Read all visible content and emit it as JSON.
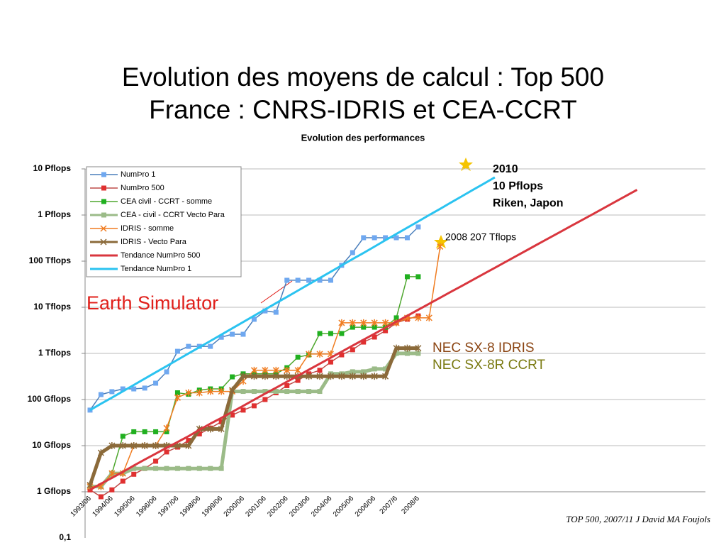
{
  "slide_title": [
    "Evolution des moyens de calcul : Top 500",
    "France : CNRS-IDRIS et CEA-CCRT"
  ],
  "source": "TOP 500, 2007/11 J David MA Foujols",
  "chart_data": {
    "type": "line",
    "title": "Evolution des performances",
    "log_scale": true,
    "grid": true,
    "legend": "top-left",
    "categories": [
      "1993/06",
      null,
      "1994/06",
      null,
      "1995/06",
      null,
      "1996/06",
      null,
      "1997/06",
      null,
      "1998/06",
      null,
      "1999/06",
      null,
      "2000/06",
      null,
      "2001/06",
      null,
      "2002/06",
      null,
      "2003/06",
      null,
      "2004/06",
      null,
      "2005/06",
      null,
      "2006/06",
      null,
      "2007/6",
      null,
      "2008/6",
      null,
      null,
      null,
      null,
      null,
      null,
      null,
      null,
      null,
      null,
      null,
      null,
      null,
      null,
      null,
      null,
      null,
      null,
      null,
      null
    ],
    "ylim": [
      0.1,
      10000000
    ],
    "yticks": [
      {
        "value": 0.1,
        "label": "0,1"
      },
      {
        "value": 1,
        "label": "1 Gflops"
      },
      {
        "value": 10,
        "label": "10 Gflops"
      },
      {
        "value": 100,
        "label": "100 Gflops"
      },
      {
        "value": 1000,
        "label": "1 Tflops"
      },
      {
        "value": 10000,
        "label": "10 Tflops"
      },
      {
        "value": 100000,
        "label": "100 Tflops"
      },
      {
        "value": 1000000,
        "label": "1 Pflops"
      },
      {
        "value": 10000000,
        "label": "10 Pflops"
      }
    ],
    "series": [
      {
        "name": "NumÞro 1",
        "color": "#4a7ebb",
        "marker": "square",
        "marker_color": "#6fa8f0",
        "line_width": 1.5,
        "values": [
          59,
          128,
          148,
          170,
          170,
          177,
          226,
          398,
          1110,
          1420,
          1420,
          1420,
          2240,
          2600,
          2600,
          5490,
          8340,
          7790,
          38500,
          38500,
          38500,
          38500,
          38500,
          81000,
          153000,
          322000,
          322000,
          322000,
          322000,
          322000,
          550000,
          null,
          null,
          null,
          null,
          null,
          null,
          null,
          null,
          null,
          null,
          null,
          null,
          null,
          null,
          null,
          null,
          null,
          null,
          null,
          null
        ]
      },
      {
        "name": "NumÞro 500",
        "color": "#be4b48",
        "marker": "square",
        "marker_color": "#e03030",
        "line_width": 1.5,
        "values": [
          1.1,
          0.78,
          1.1,
          1.7,
          2.4,
          3.2,
          4.6,
          7.3,
          9.3,
          13,
          18,
          24,
          33,
          46,
          59,
          73,
          100,
          140,
          200,
          260,
          360,
          430,
          650,
          930,
          1200,
          1760,
          2260,
          3100,
          4600,
          5500,
          6500,
          null,
          null,
          null,
          null,
          null,
          null,
          null,
          null,
          null,
          null,
          null,
          null,
          null,
          null,
          null,
          null,
          null,
          null,
          null,
          null
        ]
      },
      {
        "name": "CEA civil - CCRT - somme",
        "color": "#4ea72e",
        "marker": "square",
        "marker_color": "#20b020",
        "line_width": 1.5,
        "values": [
          1.3,
          1.3,
          2.5,
          16,
          20,
          20,
          20,
          20,
          140,
          130,
          160,
          170,
          170,
          310,
          360,
          360,
          360,
          360,
          490,
          830,
          930,
          2700,
          2700,
          2700,
          3700,
          3700,
          3700,
          3700,
          5900,
          46000,
          46000,
          null,
          null,
          null,
          null,
          null,
          null,
          null,
          null,
          null,
          null,
          null,
          null,
          null,
          null,
          null,
          null,
          null,
          null,
          null,
          null
        ]
      },
      {
        "name": "CEA - civil - CCRT Vecto Para",
        "color": "#9bbb88",
        "marker": "square",
        "marker_color": "#9bbb88",
        "line_width": 5,
        "values": [
          1.3,
          1.3,
          2.5,
          2.5,
          3.2,
          3.2,
          3.2,
          3.2,
          3.2,
          3.2,
          3.2,
          3.2,
          3.2,
          150,
          150,
          150,
          150,
          150,
          150,
          150,
          150,
          150,
          360,
          360,
          400,
          400,
          460,
          460,
          1000,
          1000,
          1000,
          null,
          null,
          null,
          null,
          null,
          null,
          null,
          null,
          null,
          null,
          null,
          null,
          null,
          null,
          null,
          null,
          null,
          null,
          null,
          null
        ]
      },
      {
        "name": "IDRIS - somme",
        "color": "#f07c20",
        "marker": "x",
        "marker_color": "#f07c20",
        "line_width": 1.5,
        "values": [
          1.3,
          1.3,
          2.5,
          2.5,
          10,
          10,
          10,
          24,
          110,
          140,
          140,
          150,
          150,
          150,
          250,
          430,
          430,
          430,
          430,
          430,
          970,
          970,
          970,
          4600,
          4600,
          4600,
          4600,
          4600,
          4600,
          5900,
          5900,
          5900,
          207000,
          null,
          null,
          null,
          null,
          null,
          null,
          null,
          null,
          null,
          null,
          null,
          null,
          null,
          null,
          null,
          null,
          null,
          null
        ]
      },
      {
        "name": "IDRIS - Vecto Para",
        "color": "#8b6a3a",
        "marker": "x",
        "marker_color": "#8b6a3a",
        "line_width": 5,
        "values": [
          1.4,
          7,
          10,
          10,
          10,
          10,
          10,
          10,
          10,
          10,
          23,
          23,
          23,
          160,
          320,
          320,
          320,
          320,
          320,
          320,
          320,
          320,
          320,
          320,
          320,
          320,
          320,
          320,
          1300,
          1300,
          1300,
          null,
          null,
          null,
          null,
          null,
          null,
          null,
          null,
          null,
          null,
          null,
          null,
          null,
          null,
          null,
          null,
          null,
          null,
          null,
          null
        ]
      },
      {
        "name": "Tendance NumÞro 500",
        "color": "#d9363e",
        "marker": "none",
        "line_width": 3,
        "values": [
          1.1,
          1.5,
          2.0,
          2.7,
          3.7,
          5.0,
          6.7,
          9.0,
          12,
          16,
          22,
          30,
          40,
          54,
          73,
          99,
          134,
          180,
          243,
          328,
          443,
          597,
          805,
          1090,
          1470,
          1980,
          2670,
          3600,
          4850,
          6550,
          8830,
          11900,
          16100,
          21700,
          29200,
          39400,
          53200,
          71800,
          96800,
          131000,
          176000,
          238000,
          321000,
          432000,
          583000,
          787000,
          1060000,
          1430000,
          1930000,
          2610000,
          3520000
        ]
      },
      {
        "name": "Tendance NumÞro 1",
        "color": "#2bc3f0",
        "marker": "none",
        "line_width": 3,
        "values": [
          59,
          81,
          110,
          151,
          207,
          283,
          388,
          531,
          727,
          995,
          1360,
          1860,
          2550,
          3490,
          4780,
          6550,
          8960,
          12300,
          16800,
          23000,
          31500,
          43100,
          59000,
          80800,
          111000,
          151000,
          207000,
          284000,
          388000,
          532000,
          728000,
          996000,
          1360000,
          1870000,
          2560000,
          3500000,
          4790000,
          6560000,
          null,
          null,
          null,
          null,
          null,
          null,
          null,
          null,
          null,
          null,
          null,
          null,
          null
        ]
      }
    ],
    "annotations": [
      {
        "text": "2010",
        "color": "#000000"
      },
      {
        "text": "10 Pflops",
        "color": "#000000"
      },
      {
        "text": "Riken, Japon",
        "color": "#000000"
      },
      {
        "text": "2008 207 Tflops",
        "color": "#000000"
      },
      {
        "text": "Earth Simulator",
        "color": "#e0201b"
      },
      {
        "text": "NEC SX-8 IDRIS",
        "color": "#8b4513"
      },
      {
        "text": "NEC SX-8R CCRT",
        "color": "#7a7a10"
      }
    ]
  }
}
